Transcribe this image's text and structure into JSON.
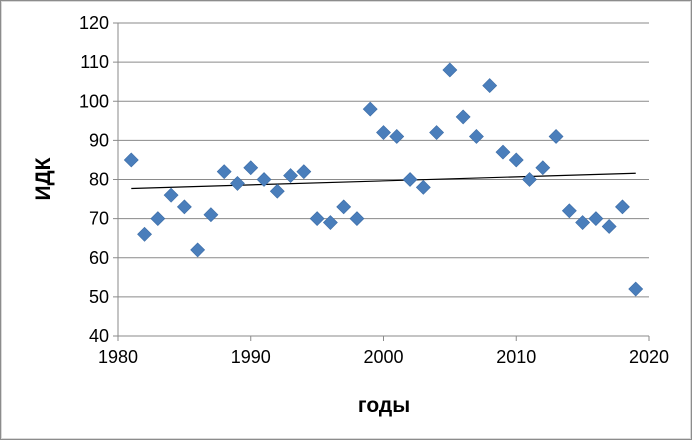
{
  "chart_data": {
    "type": "scatter",
    "title": "",
    "xlabel": "годы",
    "ylabel": "ИДК",
    "xlim": [
      1980,
      2020
    ],
    "ylim": [
      40,
      120
    ],
    "x_ticks": [
      1980,
      1990,
      2000,
      2010,
      2020
    ],
    "y_ticks": [
      40,
      50,
      60,
      70,
      80,
      90,
      100,
      110,
      120
    ],
    "grid": "horizontal",
    "legend": "none",
    "marker": "diamond",
    "marker_color": "#4a7ebb",
    "trendline": {
      "type": "linear",
      "from": [
        1981,
        77.7
      ],
      "to": [
        2019,
        81.6
      ]
    },
    "series": [
      {
        "points": [
          [
            1981,
            85
          ],
          [
            1982,
            66
          ],
          [
            1983,
            70
          ],
          [
            1984,
            76
          ],
          [
            1985,
            73
          ],
          [
            1986,
            62
          ],
          [
            1987,
            71
          ],
          [
            1988,
            82
          ],
          [
            1989,
            79
          ],
          [
            1990,
            83
          ],
          [
            1991,
            80
          ],
          [
            1992,
            77
          ],
          [
            1993,
            81
          ],
          [
            1994,
            82
          ],
          [
            1995,
            70
          ],
          [
            1996,
            69
          ],
          [
            1997,
            73
          ],
          [
            1998,
            70
          ],
          [
            1999,
            98
          ],
          [
            2000,
            92
          ],
          [
            2001,
            91
          ],
          [
            2002,
            80
          ],
          [
            2003,
            78
          ],
          [
            2004,
            92
          ],
          [
            2005,
            108
          ],
          [
            2006,
            96
          ],
          [
            2007,
            91
          ],
          [
            2008,
            104
          ],
          [
            2009,
            87
          ],
          [
            2010,
            85
          ],
          [
            2011,
            80
          ],
          [
            2012,
            83
          ],
          [
            2013,
            91
          ],
          [
            2014,
            72
          ],
          [
            2015,
            69
          ],
          [
            2016,
            70
          ],
          [
            2017,
            68
          ],
          [
            2018,
            73
          ],
          [
            2019,
            52
          ]
        ]
      }
    ]
  }
}
